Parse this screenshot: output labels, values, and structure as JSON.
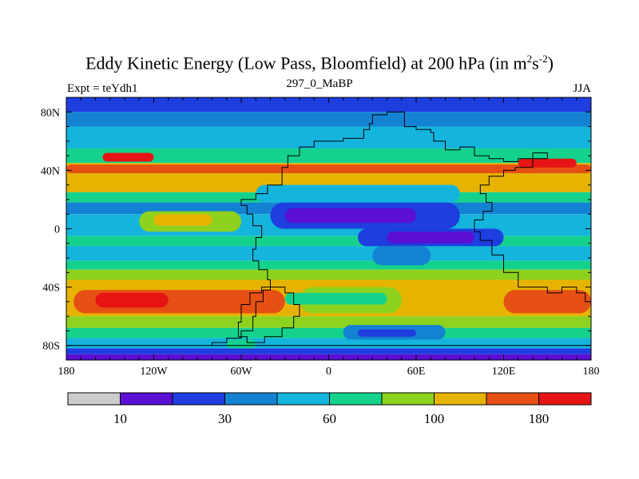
{
  "title": {
    "main": "Eddy Kinetic Energy (Low Pass, Bloomfield) at 200 hPa (in m",
    "sup1": "2",
    "mid": "s",
    "sup2": "-2",
    "end": ")"
  },
  "subtitle_left": "Expt = teYdh1",
  "subtitle_center": "297_0_MaBP",
  "subtitle_right": "JJA",
  "chart_data": {
    "type": "heatmap",
    "title": "Eddy Kinetic Energy (Low Pass, Bloomfield) at 200 hPa (in m2s-2)",
    "variable": "Eddy Kinetic Energy",
    "units": "m2s-2",
    "level_hPa": 200,
    "xlim": [
      -180,
      180
    ],
    "ylim": [
      -90,
      90
    ],
    "x_ticks": [
      {
        "value": -180,
        "label": "180"
      },
      {
        "value": -120,
        "label": "120W"
      },
      {
        "value": -60,
        "label": "60W"
      },
      {
        "value": 0,
        "label": "0"
      },
      {
        "value": 60,
        "label": "60E"
      },
      {
        "value": 120,
        "label": "120E"
      },
      {
        "value": 180,
        "label": "180"
      }
    ],
    "y_ticks": [
      {
        "value": 80,
        "label": "80N"
      },
      {
        "value": 40,
        "label": "40N"
      },
      {
        "value": 0,
        "label": "0"
      },
      {
        "value": -40,
        "label": "40S"
      },
      {
        "value": -80,
        "label": "80S"
      }
    ],
    "colorbar": {
      "colors": [
        "#cccccc",
        "#5a0fd2",
        "#1e3ee0",
        "#1482d2",
        "#14b4dc",
        "#14d28c",
        "#8cd21e",
        "#e6b400",
        "#e65014",
        "#e61414"
      ],
      "labels": [
        {
          "after_box": 1,
          "label": "10"
        },
        {
          "after_box": 3,
          "label": "30"
        },
        {
          "after_box": 5,
          "label": "60"
        },
        {
          "after_box": 7,
          "label": "100"
        },
        {
          "after_box": 9,
          "label": "180"
        }
      ]
    },
    "lat_bands": [
      {
        "lat": [
          80,
          90
        ],
        "level": 2
      },
      {
        "lat": [
          70,
          80
        ],
        "level": 3
      },
      {
        "lat": [
          55,
          70
        ],
        "level": 4
      },
      {
        "lat": [
          45,
          55
        ],
        "level": 5
      },
      {
        "lat": [
          25,
          45
        ],
        "level": 7
      },
      {
        "lat": [
          18,
          25
        ],
        "level": 5
      },
      {
        "lat": [
          10,
          18
        ],
        "level": 3
      },
      {
        "lat": [
          -5,
          10
        ],
        "level": 4
      },
      {
        "lat": [
          -12,
          -5
        ],
        "level": 5
      },
      {
        "lat": [
          -22,
          -12
        ],
        "level": 4
      },
      {
        "lat": [
          -28,
          -22
        ],
        "level": 5
      },
      {
        "lat": [
          -35,
          -28
        ],
        "level": 6
      },
      {
        "lat": [
          -60,
          -35
        ],
        "level": 7
      },
      {
        "lat": [
          -68,
          -60
        ],
        "level": 6
      },
      {
        "lat": [
          -75,
          -68
        ],
        "level": 5
      },
      {
        "lat": [
          -82,
          -75
        ],
        "level": 4
      },
      {
        "lat": [
          -86,
          -82
        ],
        "level": 2
      },
      {
        "lat": [
          -90,
          -86
        ],
        "level": 1
      }
    ],
    "patches": [
      {
        "lon": [
          -180,
          180
        ],
        "lat": [
          38,
          44
        ],
        "level": 8
      },
      {
        "lon": [
          -155,
          -120
        ],
        "lat": [
          46,
          52
        ],
        "level": 9
      },
      {
        "lon": [
          130,
          170
        ],
        "lat": [
          42,
          48
        ],
        "level": 9
      },
      {
        "lon": [
          -130,
          -60
        ],
        "lat": [
          -2,
          12
        ],
        "level": 6
      },
      {
        "lon": [
          -120,
          -80
        ],
        "lat": [
          2,
          10
        ],
        "level": 7
      },
      {
        "lon": [
          -40,
          90
        ],
        "lat": [
          0,
          18
        ],
        "level": 2
      },
      {
        "lon": [
          -30,
          60
        ],
        "lat": [
          4,
          14
        ],
        "level": 1
      },
      {
        "lon": [
          20,
          120
        ],
        "lat": [
          -12,
          0
        ],
        "level": 2
      },
      {
        "lon": [
          40,
          100
        ],
        "lat": [
          -10,
          -2
        ],
        "level": 1
      },
      {
        "lon": [
          -175,
          -30
        ],
        "lat": [
          -58,
          -42
        ],
        "level": 8
      },
      {
        "lon": [
          -160,
          -110
        ],
        "lat": [
          -54,
          -44
        ],
        "level": 9
      },
      {
        "lon": [
          120,
          180
        ],
        "lat": [
          -58,
          -42
        ],
        "level": 8
      },
      {
        "lon": [
          -20,
          50
        ],
        "lat": [
          -58,
          -40
        ],
        "level": 6
      },
      {
        "lon": [
          -30,
          40
        ],
        "lat": [
          -52,
          -44
        ],
        "level": 5
      },
      {
        "lon": [
          10,
          80
        ],
        "lat": [
          -76,
          -66
        ],
        "level": 3
      },
      {
        "lon": [
          20,
          60
        ],
        "lat": [
          -74,
          -69
        ],
        "level": 2
      },
      {
        "lon": [
          -70,
          -50
        ],
        "lat": [
          -82,
          -76
        ],
        "level": 5
      },
      {
        "lon": [
          -180,
          180
        ],
        "lat": [
          60,
          66
        ],
        "level": 4
      },
      {
        "lon": [
          -50,
          90
        ],
        "lat": [
          18,
          30
        ],
        "level": 4
      },
      {
        "lon": [
          30,
          70
        ],
        "lat": [
          -25,
          -12
        ],
        "level": 3
      }
    ],
    "continents": [
      [
        [
          -180,
          -80
        ],
        [
          -100,
          -80
        ],
        [
          -80,
          -78
        ],
        [
          -70,
          -75
        ],
        [
          -60,
          -70
        ],
        [
          -52,
          -60
        ],
        [
          -50,
          -50
        ],
        [
          -45,
          -42
        ],
        [
          -40,
          -35
        ],
        [
          -42,
          -28
        ],
        [
          -48,
          -22
        ],
        [
          -52,
          -14
        ],
        [
          -50,
          -6
        ],
        [
          -46,
          2
        ],
        [
          -52,
          10
        ],
        [
          -56,
          16
        ],
        [
          -60,
          20
        ],
        [
          -50,
          24
        ],
        [
          -42,
          30
        ],
        [
          -32,
          42
        ],
        [
          -28,
          50
        ],
        [
          -20,
          56
        ],
        [
          -10,
          60
        ],
        [
          10,
          62
        ],
        [
          24,
          68
        ],
        [
          28,
          72
        ],
        [
          30,
          78
        ],
        [
          40,
          80
        ],
        [
          50,
          80
        ],
        [
          52,
          70
        ],
        [
          60,
          68
        ],
        [
          70,
          66
        ],
        [
          72,
          60
        ],
        [
          80,
          54
        ],
        [
          90,
          56
        ],
        [
          100,
          50
        ],
        [
          110,
          48
        ],
        [
          120,
          46
        ],
        [
          130,
          48
        ],
        [
          140,
          52
        ],
        [
          150,
          48
        ],
        [
          140,
          42
        ],
        [
          128,
          40
        ],
        [
          120,
          36
        ],
        [
          110,
          30
        ],
        [
          104,
          24
        ],
        [
          108,
          18
        ],
        [
          112,
          12
        ],
        [
          106,
          6
        ],
        [
          100,
          -2
        ],
        [
          104,
          -8
        ],
        [
          112,
          -18
        ],
        [
          120,
          -30
        ],
        [
          130,
          -40
        ],
        [
          150,
          -44
        ],
        [
          160,
          -40
        ],
        [
          170,
          -44
        ],
        [
          176,
          -50
        ],
        [
          180,
          -56
        ],
        [
          180,
          -80
        ]
      ],
      [
        [
          -40,
          -40
        ],
        [
          -30,
          -44
        ],
        [
          -24,
          -52
        ],
        [
          -20,
          -60
        ],
        [
          -24,
          -68
        ],
        [
          -32,
          -74
        ],
        [
          -44,
          -78
        ],
        [
          -56,
          -74
        ],
        [
          -62,
          -64
        ],
        [
          -60,
          -52
        ],
        [
          -54,
          -44
        ],
        [
          -46,
          -40
        ]
      ]
    ]
  },
  "note": ""
}
